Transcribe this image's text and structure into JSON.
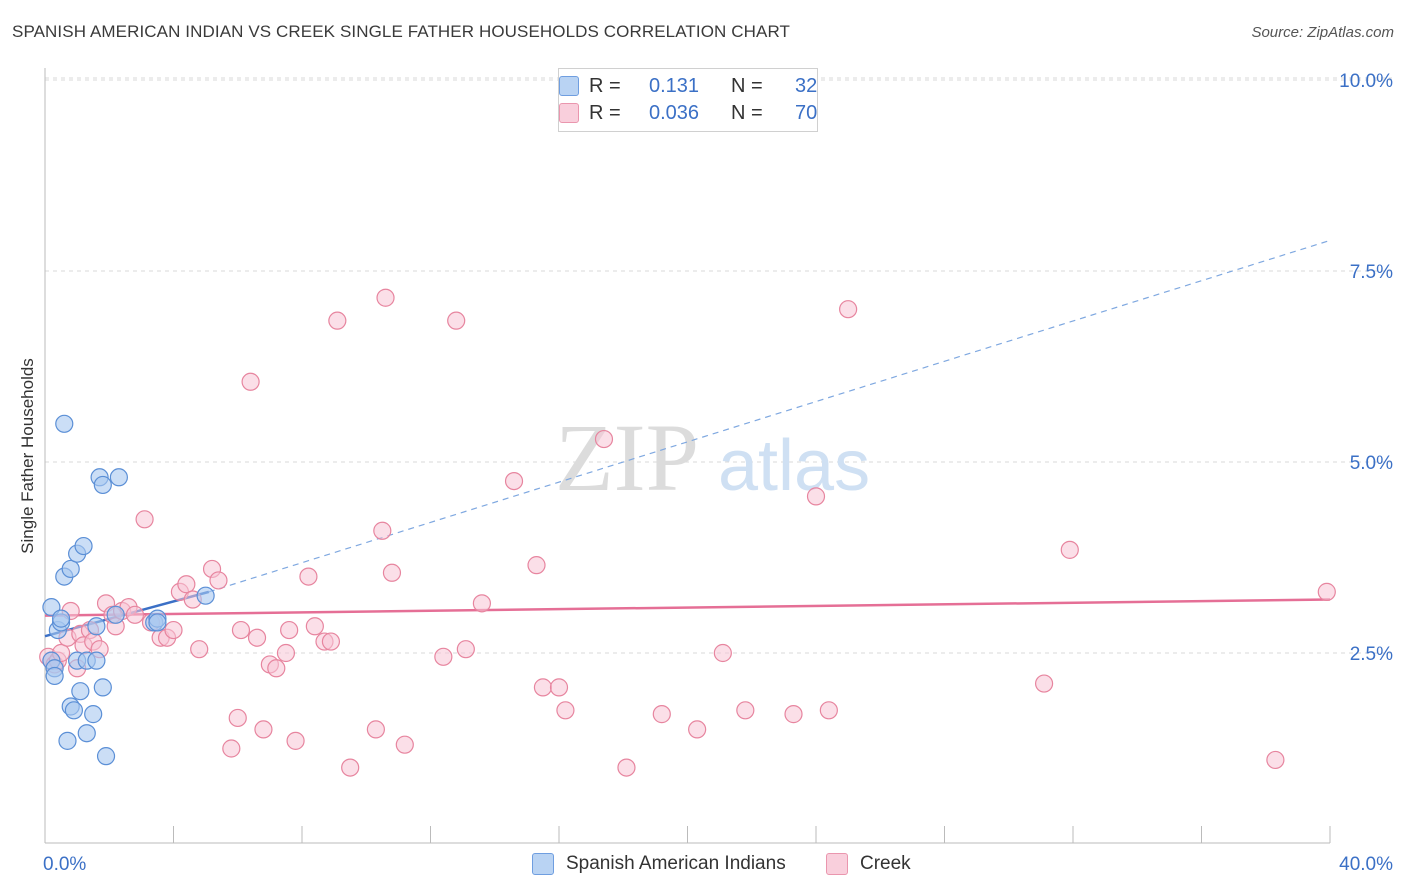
{
  "header": {
    "title": "SPANISH AMERICAN INDIAN VS CREEK SINGLE FATHER HOUSEHOLDS CORRELATION CHART",
    "source": "Source: ZipAtlas.com"
  },
  "legend": {
    "rows": [
      {
        "r_label": "R =",
        "r_value": "0.131",
        "n_label": "N =",
        "n_value": "32"
      },
      {
        "r_label": "R =",
        "r_value": "0.036",
        "n_label": "N =",
        "n_value": "70"
      }
    ]
  },
  "bottom_legend": [
    {
      "label": "Spanish American Indians"
    },
    {
      "label": "Creek"
    }
  ],
  "watermark": {
    "zip": "ZIP",
    "atlas": "atlas"
  },
  "colors": {
    "series1_fill": "#a9c8f0",
    "series1_stroke": "#5b8fd6",
    "series1_line": "#3b70c6",
    "series2_fill": "#f7c4d5",
    "series2_stroke": "#e7859f",
    "series2_line": "#e56f96",
    "tick_label": "#3b70c6",
    "grid": "#d9d9d9"
  },
  "chart_data": {
    "type": "scatter",
    "title": "SPANISH AMERICAN INDIAN VS CREEK SINGLE FATHER HOUSEHOLDS CORRELATION CHART",
    "xlabel": "",
    "ylabel": "Single Father Households",
    "xlim": [
      0,
      40
    ],
    "ylim": [
      0,
      10.5
    ],
    "x_tick_labels": [
      "0.0%",
      "40.0%"
    ],
    "y_ticks": [
      2.5,
      5.0,
      7.5,
      10.0
    ],
    "y_tick_labels": [
      "2.5%",
      "5.0%",
      "7.5%",
      "10.0%"
    ],
    "grid": true,
    "series": [
      {
        "name": "Spanish American Indians",
        "R": 0.131,
        "N": 32,
        "trend_solid": [
          [
            0,
            2.72
          ],
          [
            5.1,
            3.3
          ]
        ],
        "trend_dashed": [
          [
            5.1,
            3.3
          ],
          [
            40,
            7.9
          ]
        ],
        "points": [
          [
            0.2,
            2.4
          ],
          [
            0.3,
            2.3
          ],
          [
            0.3,
            2.2
          ],
          [
            0.2,
            3.1
          ],
          [
            0.4,
            2.8
          ],
          [
            0.5,
            2.9
          ],
          [
            0.6,
            3.5
          ],
          [
            0.6,
            5.5
          ],
          [
            0.8,
            3.6
          ],
          [
            0.7,
            1.35
          ],
          [
            0.8,
            1.8
          ],
          [
            0.9,
            1.75
          ],
          [
            1.0,
            2.4
          ],
          [
            1.0,
            3.8
          ],
          [
            1.1,
            2.0
          ],
          [
            1.2,
            3.9
          ],
          [
            1.3,
            2.4
          ],
          [
            1.3,
            1.45
          ],
          [
            1.5,
            1.7
          ],
          [
            1.6,
            2.4
          ],
          [
            1.6,
            2.85
          ],
          [
            1.7,
            4.8
          ],
          [
            1.8,
            2.05
          ],
          [
            1.8,
            4.7
          ],
          [
            1.9,
            1.15
          ],
          [
            2.2,
            3.0
          ],
          [
            2.3,
            4.8
          ],
          [
            3.4,
            2.9
          ],
          [
            3.5,
            2.95
          ],
          [
            3.5,
            2.9
          ],
          [
            5.0,
            3.25
          ],
          [
            0.5,
            2.95
          ]
        ]
      },
      {
        "name": "Creek",
        "R": 0.036,
        "N": 70,
        "trend": [
          [
            0,
            2.99
          ],
          [
            40,
            3.2
          ]
        ],
        "points": [
          [
            0.1,
            2.45
          ],
          [
            0.2,
            2.4
          ],
          [
            0.3,
            2.35
          ],
          [
            0.4,
            2.4
          ],
          [
            0.5,
            2.5
          ],
          [
            0.7,
            2.7
          ],
          [
            0.8,
            3.05
          ],
          [
            1.0,
            2.3
          ],
          [
            1.1,
            2.75
          ],
          [
            1.2,
            2.6
          ],
          [
            1.4,
            2.8
          ],
          [
            1.5,
            2.65
          ],
          [
            1.7,
            2.55
          ],
          [
            1.9,
            3.15
          ],
          [
            2.1,
            3.0
          ],
          [
            2.2,
            2.85
          ],
          [
            2.4,
            3.05
          ],
          [
            2.6,
            3.1
          ],
          [
            2.8,
            3.0
          ],
          [
            3.1,
            4.25
          ],
          [
            3.3,
            2.9
          ],
          [
            3.6,
            2.7
          ],
          [
            3.8,
            2.7
          ],
          [
            4.0,
            2.8
          ],
          [
            4.2,
            3.3
          ],
          [
            4.4,
            3.4
          ],
          [
            4.6,
            3.2
          ],
          [
            4.8,
            2.55
          ],
          [
            5.2,
            3.6
          ],
          [
            5.4,
            3.45
          ],
          [
            5.8,
            1.25
          ],
          [
            6.0,
            1.65
          ],
          [
            6.1,
            2.8
          ],
          [
            6.4,
            6.05
          ],
          [
            6.6,
            2.7
          ],
          [
            6.8,
            1.5
          ],
          [
            7.0,
            2.35
          ],
          [
            7.2,
            2.3
          ],
          [
            7.5,
            2.5
          ],
          [
            7.6,
            2.8
          ],
          [
            7.8,
            1.35
          ],
          [
            8.2,
            3.5
          ],
          [
            8.4,
            2.85
          ],
          [
            8.7,
            2.65
          ],
          [
            8.9,
            2.65
          ],
          [
            9.1,
            6.85
          ],
          [
            9.5,
            1.0
          ],
          [
            10.3,
            1.5
          ],
          [
            10.5,
            4.1
          ],
          [
            10.6,
            7.15
          ],
          [
            10.8,
            3.55
          ],
          [
            11.2,
            1.3
          ],
          [
            12.4,
            2.45
          ],
          [
            12.8,
            6.85
          ],
          [
            13.1,
            2.55
          ],
          [
            13.6,
            3.15
          ],
          [
            14.6,
            4.75
          ],
          [
            15.3,
            3.65
          ],
          [
            15.5,
            2.05
          ],
          [
            16.0,
            2.05
          ],
          [
            16.2,
            1.75
          ],
          [
            17.4,
            5.3
          ],
          [
            18.1,
            1.0
          ],
          [
            19.2,
            1.7
          ],
          [
            20.3,
            1.5
          ],
          [
            21.1,
            2.5
          ],
          [
            21.8,
            1.75
          ],
          [
            23.3,
            1.7
          ],
          [
            24.0,
            4.55
          ],
          [
            24.4,
            1.75
          ]
        ]
      }
    ],
    "extra_points_series2": [
      [
        25.0,
        7.0
      ],
      [
        31.1,
        2.1
      ],
      [
        31.9,
        3.85
      ],
      [
        38.3,
        1.1
      ],
      [
        39.9,
        3.3
      ]
    ]
  }
}
